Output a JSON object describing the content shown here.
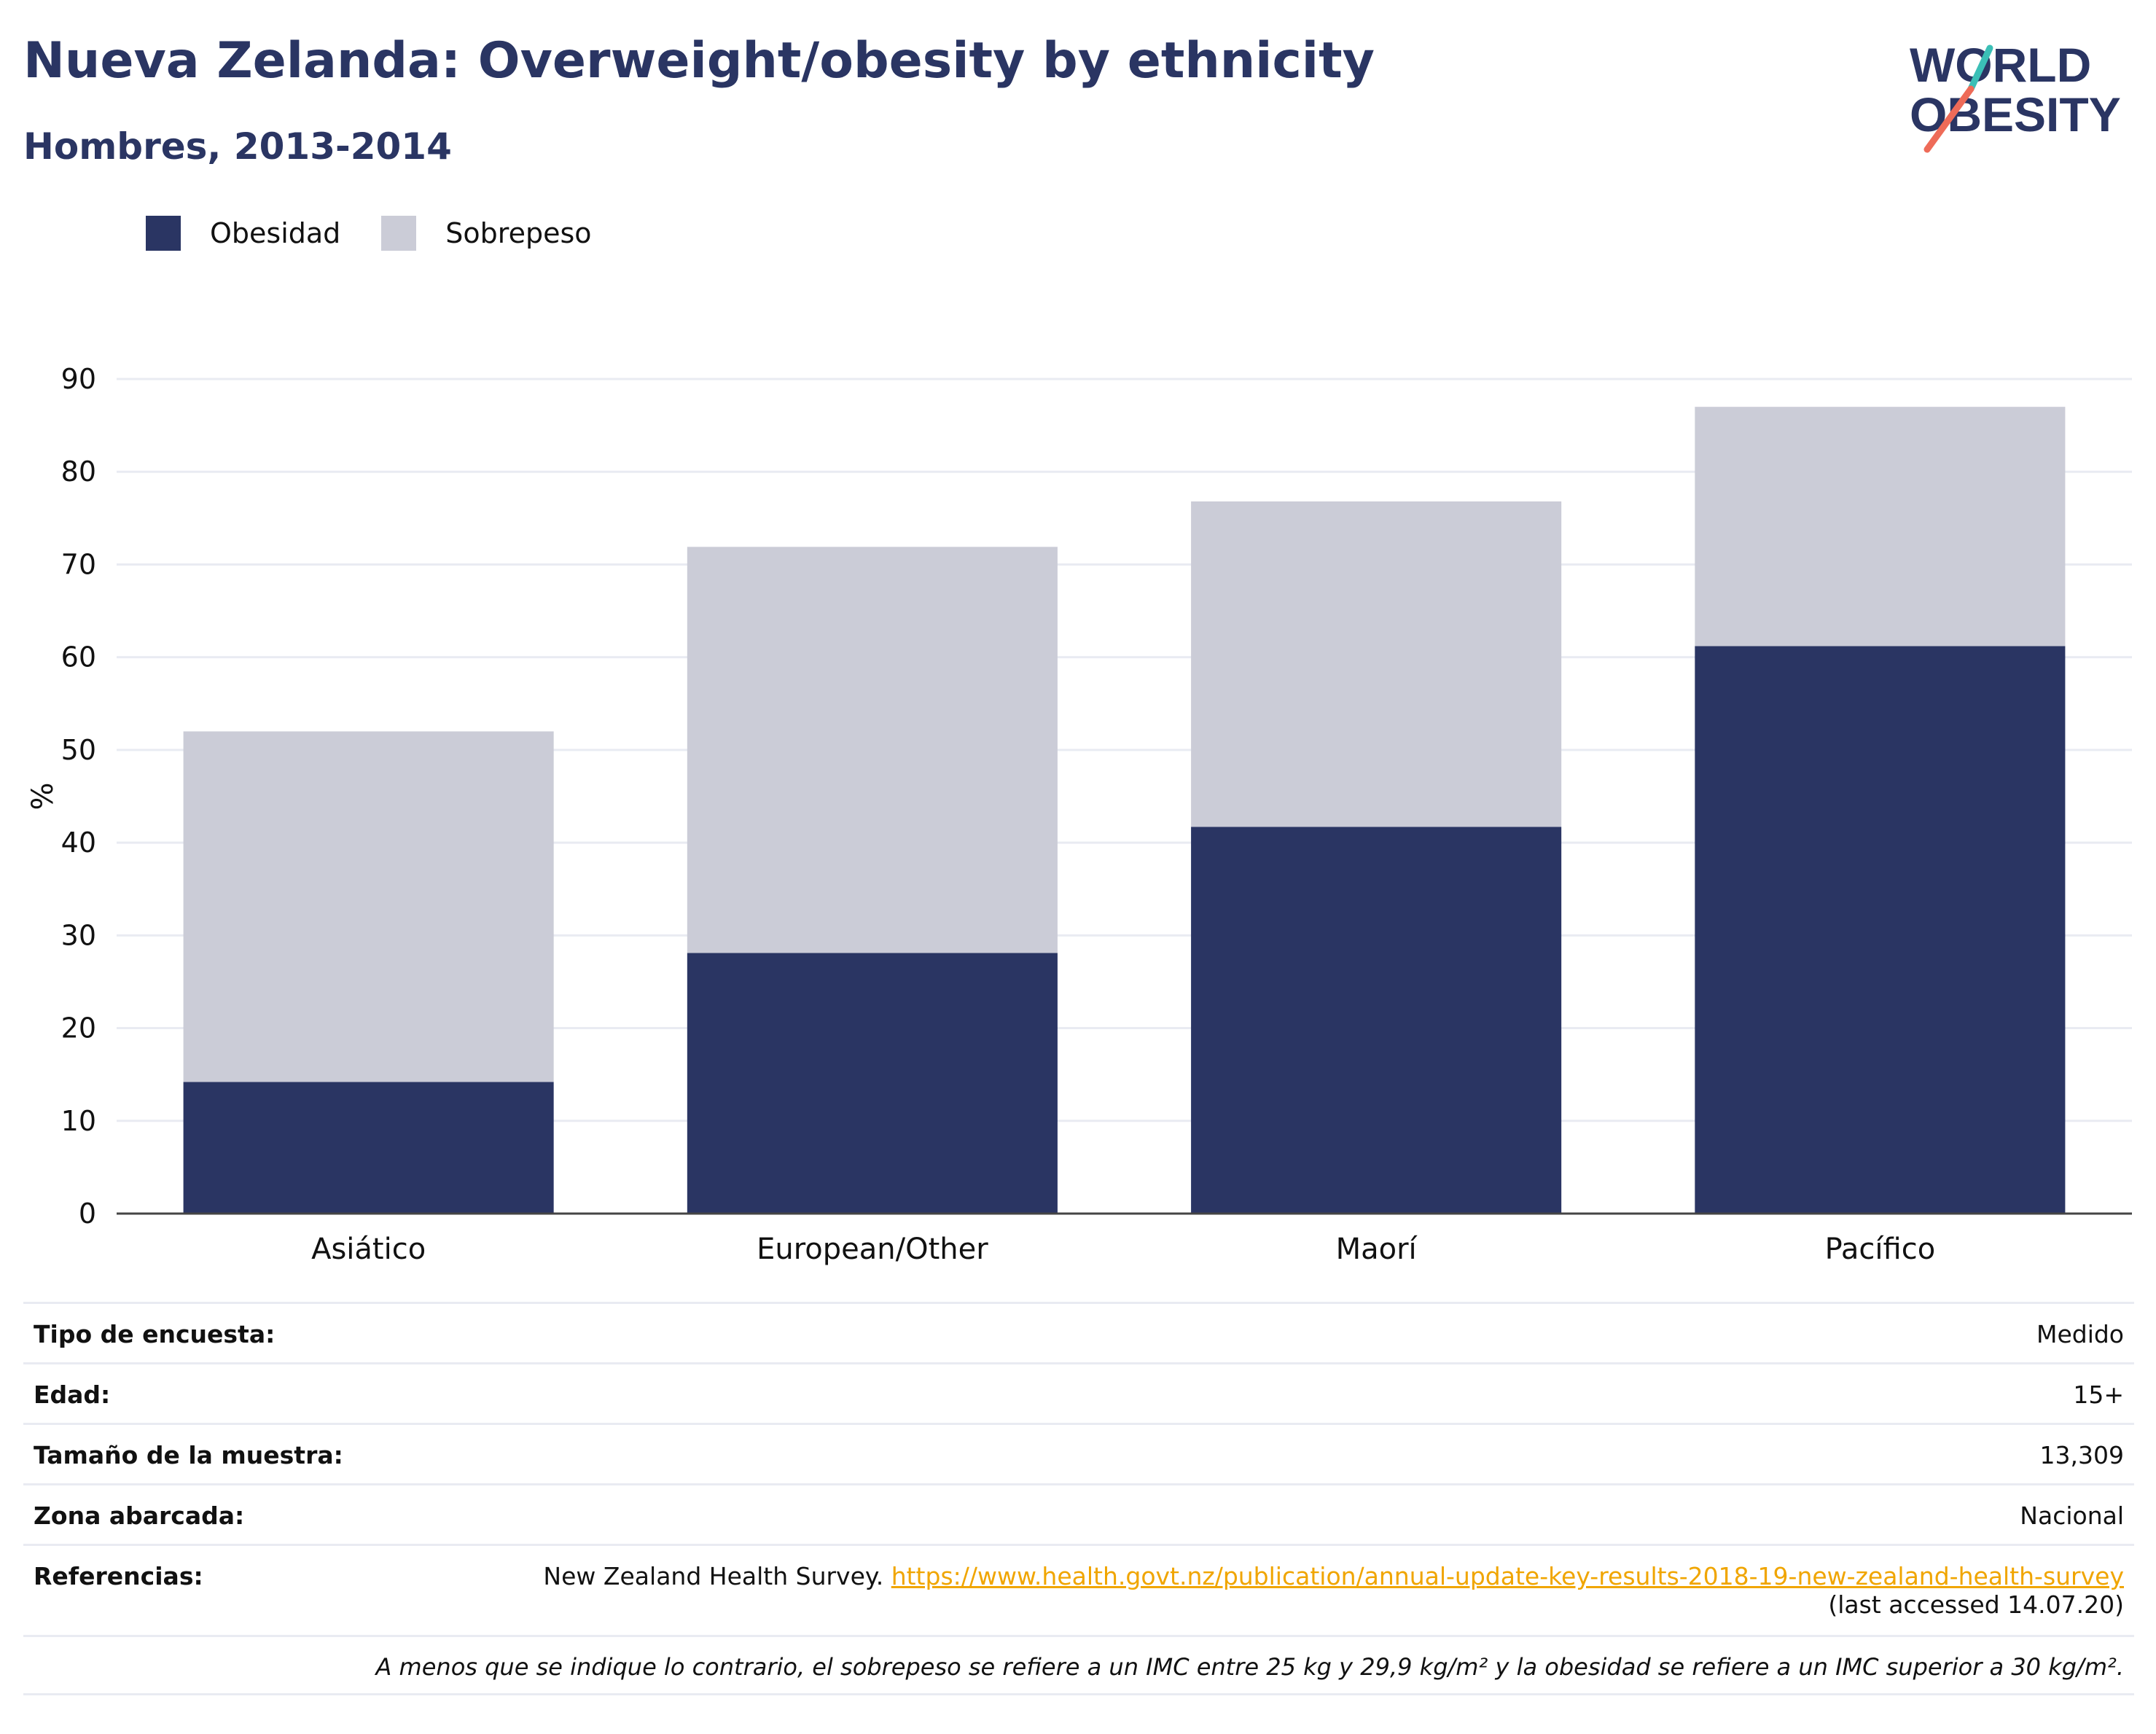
{
  "header": {
    "title": "Nueva Zelanda: Overweight/obesity by ethnicity",
    "subtitle": "Hombres, 2013-2014"
  },
  "logo": {
    "line1": "WORLD",
    "line2": "OBESITY"
  },
  "legend": {
    "obesity_label": "Obesidad",
    "overweight_label": "Sobrepeso"
  },
  "colors": {
    "obesity": "#2a3563",
    "overweight": "#cbccd7",
    "title": "#2a3563",
    "link": "#f0a500",
    "logo_teal": "#3bbfb6",
    "logo_coral": "#ee6b58"
  },
  "chart_data": {
    "type": "bar",
    "stacked": true,
    "title": "Nueva Zelanda: Overweight/obesity by ethnicity",
    "subtitle": "Hombres, 2013-2014",
    "xlabel": "",
    "ylabel": "%",
    "ylim": [
      0,
      90
    ],
    "yticks": [
      0,
      10,
      20,
      30,
      40,
      50,
      60,
      70,
      80,
      90
    ],
    "categories": [
      "Asiático",
      "European/Other",
      "Maorí",
      "Pacífico"
    ],
    "series": [
      {
        "name": "Obesidad",
        "values": [
          14.2,
          28.1,
          41.7,
          61.2
        ]
      },
      {
        "name": "Sobrepeso",
        "values": [
          37.8,
          43.8,
          35.1,
          25.8
        ]
      }
    ],
    "grid": true,
    "legend_position": "top-left"
  },
  "info": {
    "rows": [
      {
        "label": "Tipo de encuesta:",
        "value": "Medido"
      },
      {
        "label": "Edad:",
        "value": "15+"
      },
      {
        "label": "Tamaño de la muestra:",
        "value": "13,309"
      },
      {
        "label": "Zona abarcada:",
        "value": "Nacional"
      }
    ],
    "references": {
      "label": "Referencias:",
      "source": "New Zealand Health Survey.",
      "link": "https://www.health.govt.nz/publication/annual-update-key-results-2018-19-new-zealand-health-survey",
      "accessed": "(last accessed 14.07.20)"
    },
    "note": "A menos que se indique lo contrario, el sobrepeso se refiere a un IMC entre 25 kg y 29,9 kg/m² y la obesidad se refiere a un IMC superior a 30 kg/m²."
  }
}
